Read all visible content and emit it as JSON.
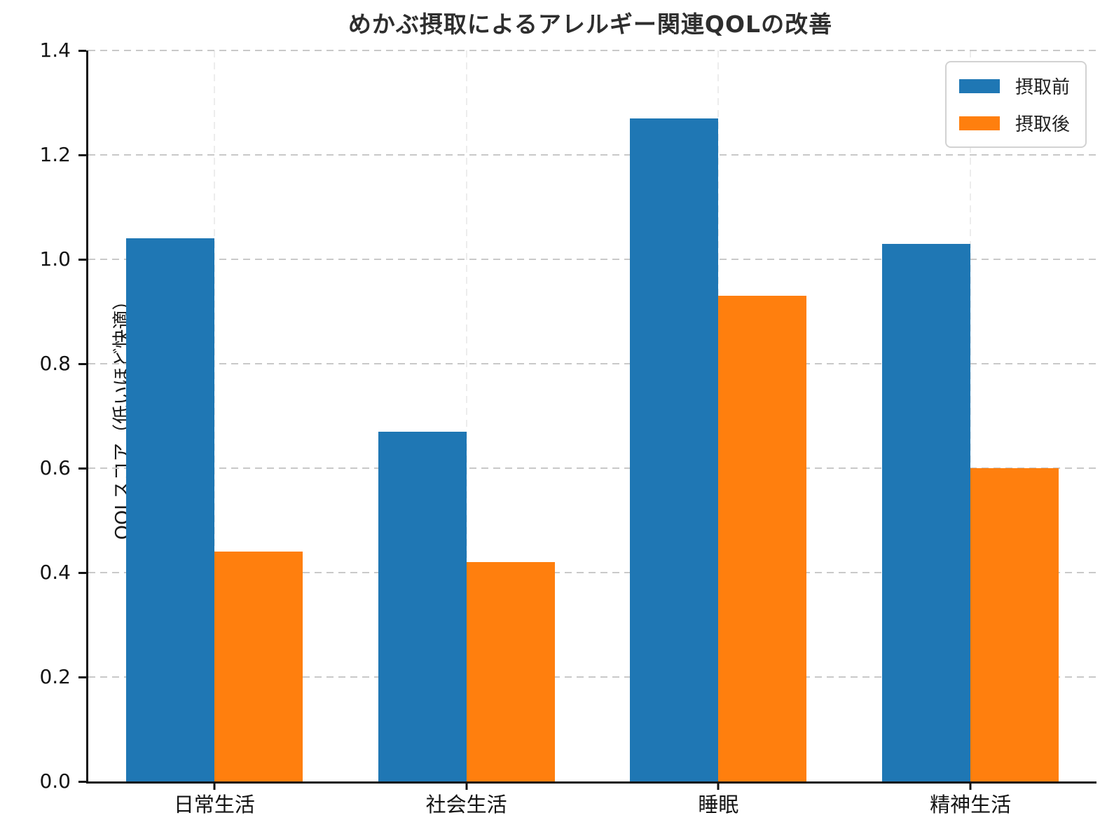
{
  "chart_data": {
    "type": "bar",
    "title": "めかぶ摂取によるアレルギー関連QOLの改善",
    "xlabel": "",
    "ylabel": "QOLスコア（低いほど快適）",
    "categories": [
      "日常生活",
      "社会生活",
      "睡眠",
      "精神生活"
    ],
    "series": [
      {
        "name": "摂取前",
        "color": "#1f77b4",
        "values": [
          1.04,
          0.67,
          1.27,
          1.03
        ]
      },
      {
        "name": "摂取後",
        "color": "#ff7f0e",
        "values": [
          0.44,
          0.42,
          0.93,
          0.6
        ]
      }
    ],
    "ylim": [
      0,
      1.4
    ],
    "yticks": [
      0.0,
      0.2,
      0.4,
      0.6,
      0.8,
      1.0,
      1.2,
      1.4
    ],
    "grid": "horizontal dashed gridlines, faint vertical dashed at category centers, drawn behind bars",
    "legend_position": "upper right"
  }
}
